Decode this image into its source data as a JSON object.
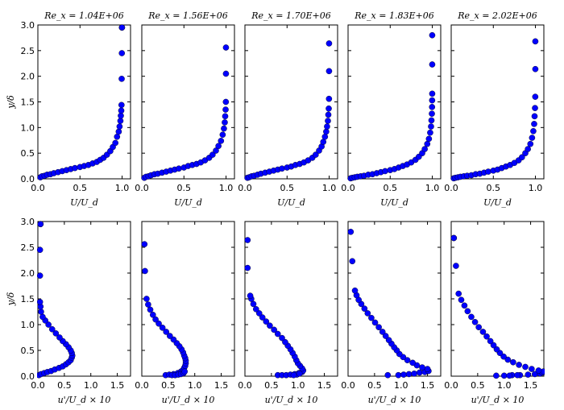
{
  "chart_data": [
    {
      "id": "u-1",
      "row": "top",
      "type": "scatter",
      "title": "Re_x = 1.04E+06",
      "xlabel": "U/U_d",
      "ylabel": "y/δ",
      "xlim": [
        0,
        1.1
      ],
      "ylim": [
        0,
        3
      ],
      "xticks": [
        "0.0",
        "0.5",
        "1.0"
      ],
      "yticks": [
        "0.0",
        "0.5",
        "1.0",
        "1.5",
        "2.0",
        "2.5",
        "3.0"
      ],
      "x": [
        0.03,
        0.05,
        0.08,
        0.11,
        0.15,
        0.19,
        0.24,
        0.29,
        0.34,
        0.39,
        0.44,
        0.5,
        0.55,
        0.6,
        0.65,
        0.7,
        0.74,
        0.78,
        0.82,
        0.86,
        0.89,
        0.92,
        0.94,
        0.96,
        0.97,
        0.98,
        0.985,
        0.99,
        0.993,
        0.995,
        0.997,
        0.998,
        0.999
      ],
      "y": [
        0.03,
        0.05,
        0.06,
        0.08,
        0.09,
        0.11,
        0.13,
        0.15,
        0.17,
        0.19,
        0.21,
        0.23,
        0.25,
        0.27,
        0.3,
        0.33,
        0.37,
        0.41,
        0.47,
        0.54,
        0.62,
        0.7,
        0.82,
        0.92,
        1.02,
        1.13,
        1.23,
        1.33,
        1.44,
        1.95,
        2.45,
        2.95,
        2.95
      ]
    },
    {
      "id": "u-2",
      "row": "top",
      "type": "scatter",
      "title": "Re_x = 1.56E+06",
      "xlabel": "U/U_d",
      "ylabel": "",
      "xlim": [
        0,
        1.1
      ],
      "ylim": [
        0,
        3
      ],
      "xticks": [
        "0.0",
        "0.5",
        "1.0"
      ],
      "yticks": [],
      "x": [
        0.03,
        0.05,
        0.08,
        0.11,
        0.15,
        0.19,
        0.24,
        0.29,
        0.34,
        0.39,
        0.44,
        0.5,
        0.55,
        0.6,
        0.65,
        0.7,
        0.75,
        0.8,
        0.84,
        0.88,
        0.91,
        0.94,
        0.96,
        0.975,
        0.985,
        0.99,
        0.995,
        0.998,
        0.999
      ],
      "y": [
        0.02,
        0.04,
        0.05,
        0.07,
        0.09,
        0.1,
        0.12,
        0.14,
        0.16,
        0.18,
        0.2,
        0.22,
        0.25,
        0.27,
        0.29,
        0.32,
        0.36,
        0.41,
        0.47,
        0.55,
        0.64,
        0.74,
        0.86,
        0.98,
        1.1,
        1.22,
        1.35,
        1.5,
        2.05
      ],
      "x_extra": [
        0.999
      ],
      "y_extra": [
        2.56
      ]
    },
    {
      "id": "u-3",
      "row": "top",
      "type": "scatter",
      "title": "Re_x = 1.70E+06",
      "xlabel": "U/U_d",
      "ylabel": "",
      "xlim": [
        0,
        1.1
      ],
      "ylim": [
        0,
        3
      ],
      "xticks": [
        "0.0",
        "0.5",
        "1.0"
      ],
      "yticks": [],
      "x": [
        0.03,
        0.05,
        0.08,
        0.11,
        0.15,
        0.19,
        0.24,
        0.29,
        0.34,
        0.39,
        0.44,
        0.5,
        0.55,
        0.6,
        0.65,
        0.7,
        0.75,
        0.8,
        0.84,
        0.88,
        0.91,
        0.93,
        0.95,
        0.965,
        0.975,
        0.985,
        0.99,
        0.995,
        0.998,
        0.999,
        0.999
      ],
      "y": [
        0.02,
        0.03,
        0.05,
        0.06,
        0.08,
        0.1,
        0.12,
        0.14,
        0.16,
        0.18,
        0.2,
        0.22,
        0.24,
        0.27,
        0.29,
        0.32,
        0.36,
        0.41,
        0.47,
        0.55,
        0.63,
        0.72,
        0.82,
        0.92,
        1.02,
        1.13,
        1.25,
        1.37,
        1.56,
        2.1,
        2.64
      ]
    },
    {
      "id": "u-4",
      "row": "top",
      "type": "scatter",
      "title": "Re_x = 1.83E+06",
      "xlabel": "U/U_d",
      "ylabel": "",
      "xlim": [
        0,
        1.1
      ],
      "ylim": [
        0,
        3
      ],
      "xticks": [
        "0.0",
        "0.5",
        "1.0"
      ],
      "yticks": [],
      "x": [
        0.03,
        0.05,
        0.08,
        0.11,
        0.15,
        0.19,
        0.24,
        0.29,
        0.34,
        0.39,
        0.44,
        0.5,
        0.55,
        0.6,
        0.65,
        0.7,
        0.75,
        0.8,
        0.84,
        0.88,
        0.91,
        0.94,
        0.96,
        0.975,
        0.985,
        0.99,
        0.995,
        0.997,
        0.998,
        0.999,
        0.999,
        0.999
      ],
      "y": [
        0.01,
        0.02,
        0.03,
        0.04,
        0.05,
        0.06,
        0.08,
        0.09,
        0.11,
        0.13,
        0.15,
        0.17,
        0.19,
        0.22,
        0.25,
        0.28,
        0.32,
        0.37,
        0.43,
        0.5,
        0.58,
        0.68,
        0.78,
        0.9,
        1.02,
        1.14,
        1.27,
        1.4,
        1.53,
        1.66,
        2.23,
        2.8
      ]
    },
    {
      "id": "u-5",
      "row": "top",
      "type": "scatter",
      "title": "Re_x = 2.02E+06",
      "xlabel": "U/U_d",
      "ylabel": "",
      "xlim": [
        0,
        1.1
      ],
      "ylim": [
        0,
        3
      ],
      "xticks": [
        "0.0",
        "0.5",
        "1.0"
      ],
      "yticks": [],
      "x": [
        0.03,
        0.05,
        0.08,
        0.11,
        0.15,
        0.19,
        0.24,
        0.29,
        0.34,
        0.39,
        0.44,
        0.5,
        0.55,
        0.6,
        0.65,
        0.7,
        0.75,
        0.8,
        0.84,
        0.88,
        0.91,
        0.94,
        0.96,
        0.975,
        0.985,
        0.99,
        0.995,
        0.998,
        0.999,
        0.999
      ],
      "y": [
        0.01,
        0.02,
        0.03,
        0.04,
        0.05,
        0.06,
        0.07,
        0.09,
        0.1,
        0.12,
        0.14,
        0.16,
        0.18,
        0.21,
        0.24,
        0.27,
        0.31,
        0.36,
        0.42,
        0.5,
        0.58,
        0.68,
        0.8,
        0.93,
        1.07,
        1.22,
        1.38,
        1.6,
        2.14,
        2.68
      ]
    },
    {
      "id": "up-1",
      "row": "bottom",
      "type": "scatter",
      "title": "",
      "xlabel": "u'/U_d × 10",
      "ylabel": "y/δ",
      "xlim": [
        0,
        1.75
      ],
      "ylim": [
        0,
        3
      ],
      "xticks": [
        "0.0",
        "0.5",
        "1.0",
        "1.5"
      ],
      "yticks": [
        "0.0",
        "0.5",
        "1.0",
        "1.5",
        "2.0",
        "2.5",
        "3.0"
      ],
      "x": [
        0.02,
        0.06,
        0.12,
        0.18,
        0.25,
        0.32,
        0.4,
        0.47,
        0.53,
        0.58,
        0.62,
        0.64,
        0.65,
        0.64,
        0.62,
        0.58,
        0.53,
        0.47,
        0.41,
        0.34,
        0.27,
        0.2,
        0.14,
        0.09,
        0.06,
        0.05,
        0.04,
        0.04,
        0.04,
        0.05,
        0.05
      ],
      "y": [
        0.02,
        0.04,
        0.06,
        0.08,
        0.1,
        0.13,
        0.16,
        0.19,
        0.23,
        0.27,
        0.31,
        0.36,
        0.4,
        0.45,
        0.5,
        0.56,
        0.62,
        0.68,
        0.75,
        0.83,
        0.91,
        1.0,
        1.08,
        1.15,
        1.25,
        1.35,
        1.44,
        1.95,
        2.45,
        2.95,
        2.95
      ]
    },
    {
      "id": "up-2",
      "row": "bottom",
      "type": "scatter",
      "title": "",
      "xlabel": "u'/U_d × 10",
      "ylabel": "",
      "xlim": [
        0,
        1.75
      ],
      "ylim": [
        0,
        3
      ],
      "xticks": [
        "0.0",
        "0.5",
        "1.0",
        "1.5"
      ],
      "yticks": [],
      "x": [
        0.45,
        0.52,
        0.6,
        0.68,
        0.74,
        0.78,
        0.8,
        0.82,
        0.83,
        0.83,
        0.82,
        0.8,
        0.78,
        0.75,
        0.71,
        0.66,
        0.6,
        0.53,
        0.46,
        0.39,
        0.32,
        0.26,
        0.21,
        0.16,
        0.12,
        0.09,
        0.06,
        0.05,
        0.57,
        0.63,
        0.69,
        0.74,
        0.79,
        0.81
      ],
      "y": [
        0.02,
        0.03,
        0.04,
        0.06,
        0.09,
        0.12,
        0.16,
        0.2,
        0.25,
        0.3,
        0.35,
        0.4,
        0.46,
        0.52,
        0.58,
        0.64,
        0.71,
        0.78,
        0.86,
        0.94,
        1.02,
        1.1,
        1.19,
        1.29,
        1.39,
        1.5,
        2.04,
        2.56,
        0.02,
        0.02,
        0.03,
        0.04,
        0.06,
        0.09
      ]
    },
    {
      "id": "up-3",
      "row": "bottom",
      "type": "scatter",
      "title": "",
      "xlabel": "u'/U_d × 10",
      "ylabel": "",
      "xlim": [
        0,
        1.75
      ],
      "ylim": [
        0,
        3
      ],
      "xticks": [
        "0.0",
        "0.5",
        "1.0",
        "1.5"
      ],
      "yticks": [],
      "x": [
        0.62,
        0.7,
        0.78,
        0.86,
        0.94,
        1.02,
        1.08,
        1.1,
        1.08,
        1.04,
        1.0,
        0.97,
        0.94,
        0.9,
        0.86,
        0.81,
        0.76,
        0.7,
        0.62,
        0.55,
        0.47,
        0.4,
        0.33,
        0.27,
        0.21,
        0.16,
        0.12,
        0.1,
        0.05,
        0.05,
        0.98,
        1.03,
        0.92
      ],
      "y": [
        0.02,
        0.02,
        0.02,
        0.03,
        0.04,
        0.06,
        0.08,
        0.11,
        0.15,
        0.2,
        0.25,
        0.31,
        0.38,
        0.45,
        0.52,
        0.59,
        0.66,
        0.74,
        0.82,
        0.9,
        0.98,
        1.06,
        1.14,
        1.22,
        1.3,
        1.4,
        1.5,
        1.56,
        2.1,
        2.64,
        0.03,
        0.05,
        0.02
      ]
    },
    {
      "id": "up-4",
      "row": "bottom",
      "type": "scatter",
      "title": "",
      "xlabel": "u'/U_d × 10",
      "ylabel": "",
      "xlim": [
        0,
        1.75
      ],
      "ylim": [
        0,
        3
      ],
      "xticks": [
        "0.0",
        "0.5",
        "1.0",
        "1.5"
      ],
      "yticks": [],
      "x": [
        0.75,
        0.95,
        1.05,
        1.15,
        1.25,
        1.35,
        1.45,
        1.52,
        1.5,
        1.4,
        1.3,
        1.22,
        1.12,
        1.04,
        0.97,
        0.92,
        0.87,
        0.82,
        0.77,
        0.71,
        0.65,
        0.58,
        0.51,
        0.44,
        0.37,
        0.31,
        0.25,
        0.2,
        0.16,
        0.13,
        0.08,
        0.05
      ],
      "y": [
        0.02,
        0.02,
        0.03,
        0.04,
        0.05,
        0.07,
        0.08,
        0.1,
        0.14,
        0.17,
        0.21,
        0.26,
        0.31,
        0.37,
        0.43,
        0.5,
        0.56,
        0.63,
        0.7,
        0.78,
        0.86,
        0.95,
        1.04,
        1.13,
        1.22,
        1.31,
        1.4,
        1.48,
        1.57,
        1.66,
        2.23,
        2.8
      ]
    },
    {
      "id": "up-5",
      "row": "bottom",
      "type": "scatter",
      "title": "",
      "xlabel": "u'/U_d × 10",
      "ylabel": "",
      "xlim": [
        0,
        1.75
      ],
      "ylim": [
        0,
        3
      ],
      "xticks": [
        "0.0",
        "0.5",
        "1.0",
        "1.5"
      ],
      "yticks": [],
      "x": [
        0.85,
        1.0,
        1.15,
        1.3,
        1.45,
        1.58,
        1.68,
        1.72,
        1.74,
        1.65,
        1.52,
        1.4,
        1.28,
        1.17,
        1.07,
        0.99,
        0.92,
        0.86,
        0.8,
        0.74,
        0.67,
        0.6,
        0.52,
        0.45,
        0.38,
        0.31,
        0.25,
        0.19,
        0.14,
        0.09,
        0.05,
        0.05,
        1.1,
        1.25
      ],
      "y": [
        0.01,
        0.01,
        0.02,
        0.02,
        0.03,
        0.04,
        0.05,
        0.07,
        0.09,
        0.11,
        0.14,
        0.18,
        0.22,
        0.27,
        0.32,
        0.38,
        0.45,
        0.52,
        0.6,
        0.68,
        0.77,
        0.86,
        0.95,
        1.05,
        1.15,
        1.26,
        1.37,
        1.48,
        1.6,
        2.14,
        2.68,
        2.68,
        0.01,
        0.02
      ]
    }
  ]
}
